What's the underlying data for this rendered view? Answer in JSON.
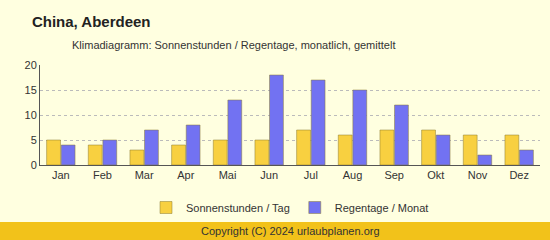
{
  "chart_data": {
    "type": "bar",
    "title": "China, Aberdeen",
    "subtitle": "Klimadiagramm: Sonnenstunden / Regentage, monatlich, gemittelt",
    "categories": [
      "Jan",
      "Feb",
      "Mar",
      "Apr",
      "Mai",
      "Jun",
      "Jul",
      "Aug",
      "Sep",
      "Okt",
      "Nov",
      "Dez"
    ],
    "series": [
      {
        "name": "Sonnenstunden / Tag",
        "color": "#f8d040",
        "values": [
          5,
          4,
          3,
          4,
          5,
          5,
          7,
          6,
          7,
          7,
          6,
          6
        ]
      },
      {
        "name": "Regentage / Monat",
        "color": "#7272f2",
        "values": [
          4,
          5,
          7,
          8,
          13,
          18,
          17,
          15,
          12,
          6,
          2,
          3
        ]
      }
    ],
    "ylim": [
      0,
      20
    ],
    "yticks": [
      0,
      5,
      10,
      15,
      20
    ],
    "grid": true,
    "legend": "bottom",
    "annotations": [
      "Copyright (C) 2024 urlaubplanen.org"
    ]
  }
}
